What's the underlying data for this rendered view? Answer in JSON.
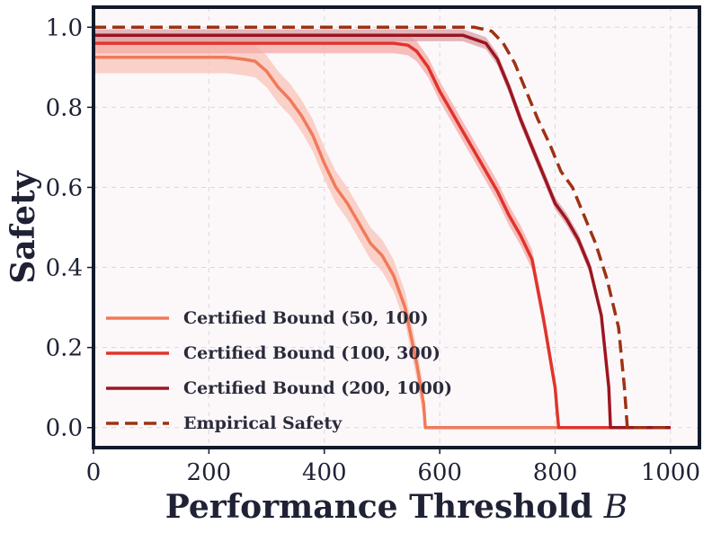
{
  "chart_data": {
    "type": "line",
    "title": "",
    "xlabel": "Performance Threshold",
    "xlabel_var": "B",
    "ylabel": "Safety",
    "xlim": [
      0,
      1050
    ],
    "ylim": [
      -0.05,
      1.05
    ],
    "xticks": [
      0,
      200,
      400,
      600,
      800,
      1000
    ],
    "xtick_labels": [
      "0",
      "200",
      "400",
      "600",
      "800",
      "1000"
    ],
    "yticks": [
      0.0,
      0.2,
      0.4,
      0.6,
      0.8,
      1.0
    ],
    "ytick_labels": [
      "0.0",
      "0.2",
      "0.4",
      "0.6",
      "0.8",
      "1.0"
    ],
    "grid": true,
    "legend_position": "lower-left",
    "series": [
      {
        "name": "Certified Bound (50, 100)",
        "color": "#f07a5a",
        "band_color": "#f9c4b8",
        "style": "solid",
        "x": [
          0,
          230,
          260,
          280,
          300,
          320,
          340,
          360,
          380,
          400,
          420,
          440,
          460,
          480,
          500,
          520,
          540,
          560,
          572,
          575,
          1000
        ],
        "y": [
          0.925,
          0.925,
          0.92,
          0.915,
          0.89,
          0.85,
          0.82,
          0.78,
          0.73,
          0.66,
          0.6,
          0.56,
          0.51,
          0.46,
          0.43,
          0.38,
          0.3,
          0.16,
          0.06,
          0.0,
          0.0
        ],
        "band": 0.04
      },
      {
        "name": "Certified Bound (100, 300)",
        "color": "#e0342c",
        "band_color": "#f4a9a6",
        "style": "solid",
        "x": [
          0,
          520,
          545,
          560,
          580,
          600,
          620,
          640,
          660,
          680,
          700,
          720,
          740,
          760,
          780,
          800,
          803,
          806,
          1000
        ],
        "y": [
          0.96,
          0.96,
          0.955,
          0.94,
          0.9,
          0.84,
          0.79,
          0.74,
          0.69,
          0.64,
          0.59,
          0.53,
          0.48,
          0.42,
          0.27,
          0.1,
          0.05,
          0.0,
          0.0
        ],
        "band": 0.025
      },
      {
        "name": "Certified Bound (200, 1000)",
        "color": "#9c1520",
        "band_color": "#d9a0a6",
        "style": "solid",
        "x": [
          0,
          640,
          680,
          700,
          720,
          740,
          760,
          780,
          800,
          820,
          840,
          860,
          880,
          893,
          896,
          1000
        ],
        "y": [
          0.98,
          0.98,
          0.96,
          0.92,
          0.85,
          0.77,
          0.7,
          0.63,
          0.56,
          0.52,
          0.47,
          0.4,
          0.28,
          0.1,
          0.0,
          0.0
        ],
        "band": 0.015
      },
      {
        "name": "Empirical Safety",
        "color": "#9e3214",
        "band_color": "",
        "style": "dashed",
        "x": [
          0,
          660,
          690,
          710,
          730,
          750,
          770,
          790,
          810,
          830,
          850,
          870,
          890,
          910,
          920,
          925,
          1000
        ],
        "y": [
          1.0,
          1.0,
          0.99,
          0.96,
          0.91,
          0.84,
          0.77,
          0.71,
          0.64,
          0.6,
          0.53,
          0.46,
          0.37,
          0.25,
          0.1,
          0.0,
          0.0
        ],
        "band": 0
      }
    ]
  }
}
